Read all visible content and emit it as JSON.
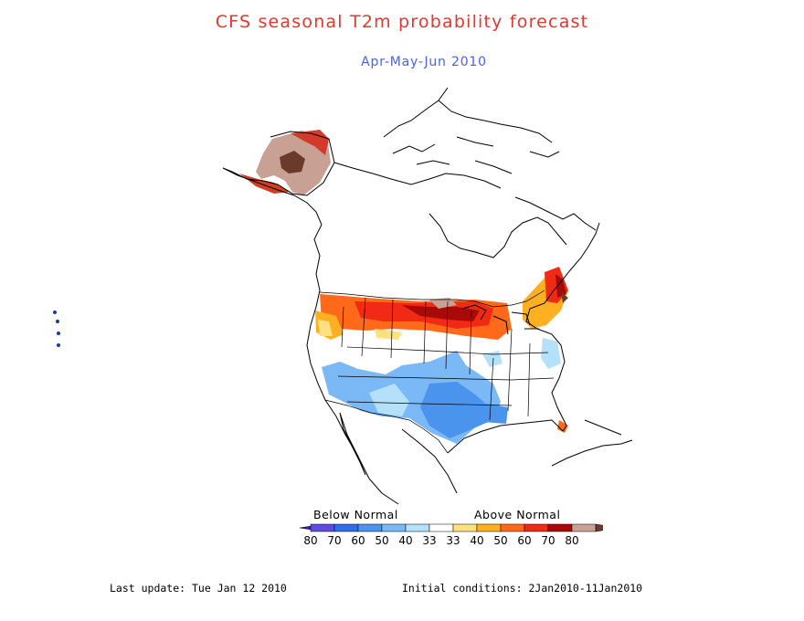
{
  "title": "CFS seasonal T2m probability forecast",
  "subtitle": "Apr-May-Jun 2010",
  "legend": {
    "below_label": "Below Normal",
    "above_label": "Above Normal",
    "colors": [
      "#3a1cb4",
      "#5e4ddc",
      "#2f6fe6",
      "#4a94ee",
      "#7ab8f6",
      "#b4e0fa",
      "#ffffff",
      "#ffe080",
      "#ffb020",
      "#ff6a1a",
      "#f02a14",
      "#a80a0a",
      "#c8a094",
      "#6a3a2a"
    ],
    "tick_labels": [
      "80",
      "70",
      "60",
      "50",
      "40",
      "33",
      "33",
      "40",
      "50",
      "60",
      "70",
      "80"
    ]
  },
  "footer": {
    "last_update": "Last update: Tue Jan 12 2010",
    "initial_conditions": "Initial conditions: 2Jan2010-11Jan2010"
  }
}
